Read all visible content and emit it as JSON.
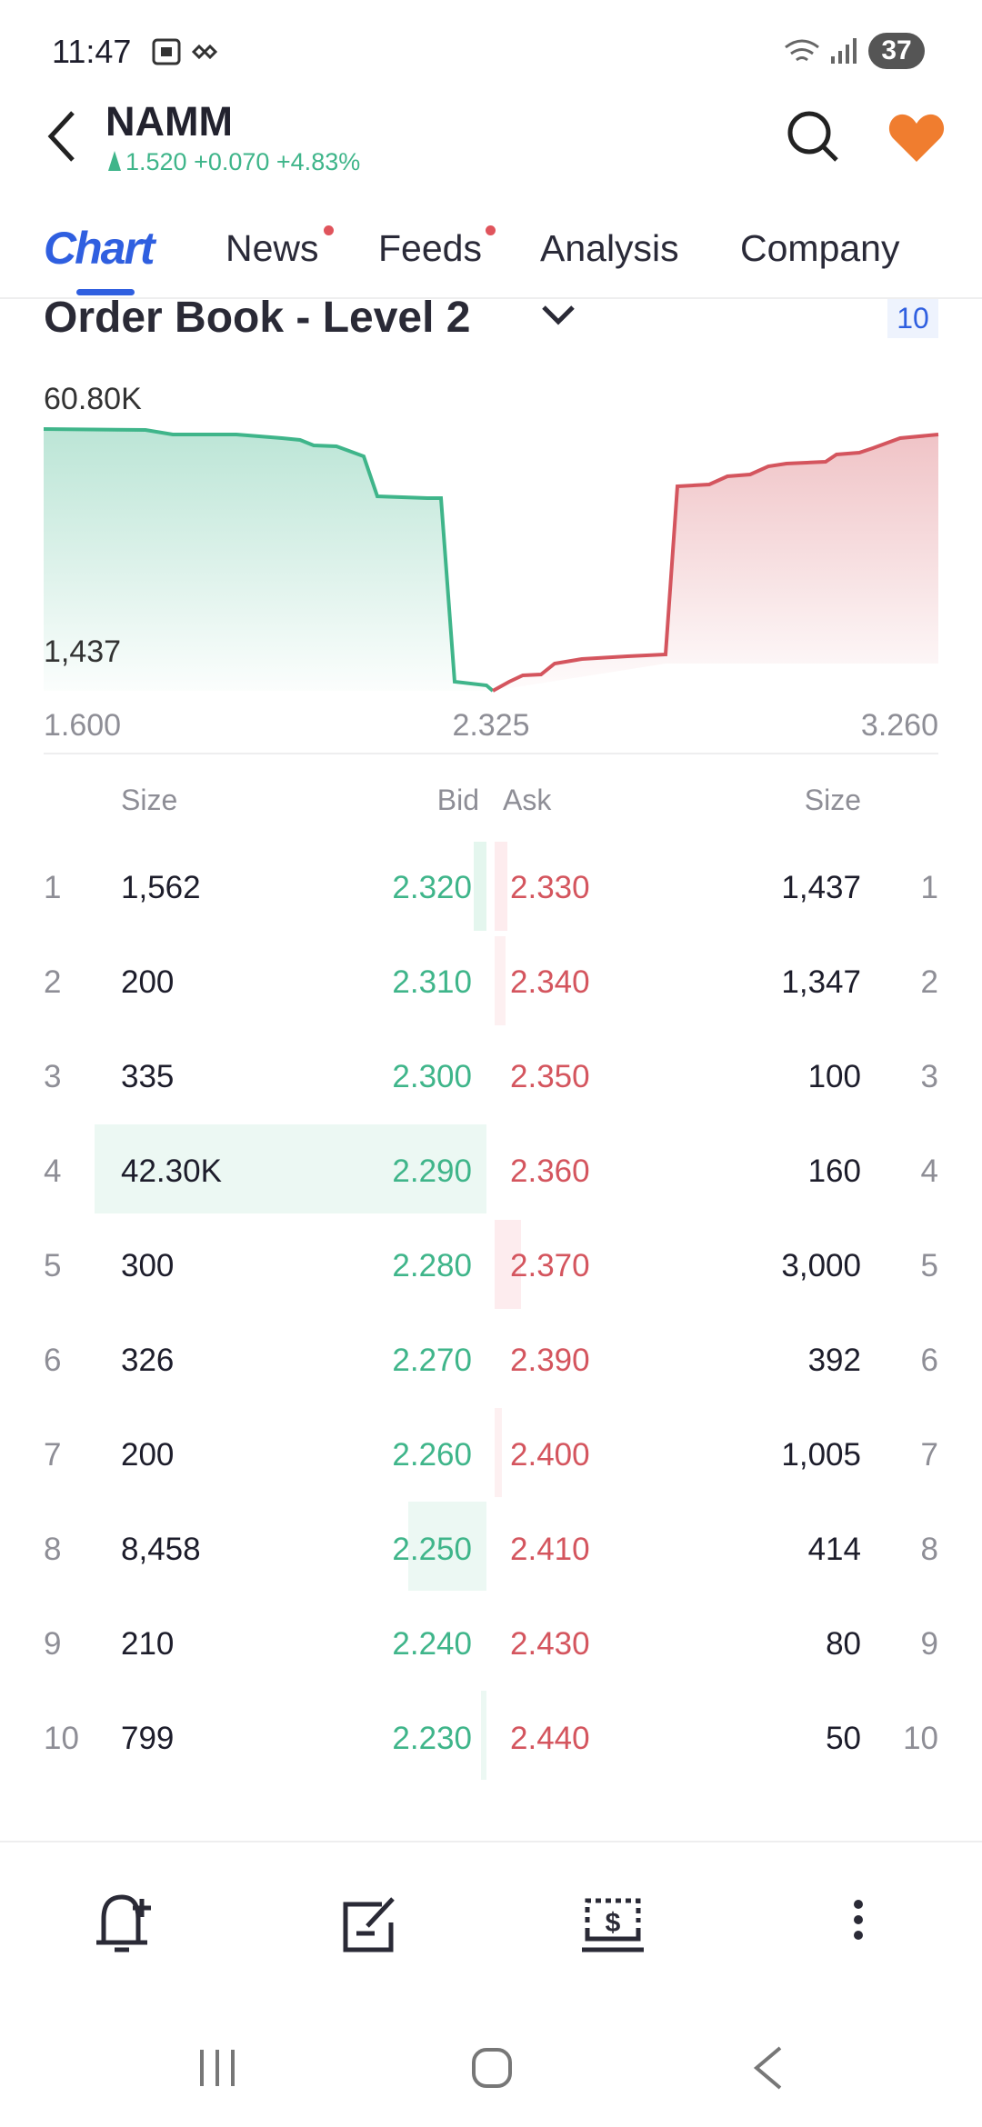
{
  "status_bar": {
    "time": "11:47",
    "battery": "37"
  },
  "header": {
    "symbol": "NAMM",
    "quote": "1.520 +0.070 +4.83%"
  },
  "tabs": [
    "Chart",
    "News",
    "Feeds",
    "Analysis",
    "Company"
  ],
  "section": {
    "title": "Order Book - Level 2",
    "depth": "10"
  },
  "depth_chart": {
    "y_top": "60.80K",
    "y_bottom": "1,437",
    "x_labels": [
      "1.600",
      "2.325",
      "3.260"
    ]
  },
  "table": {
    "headers": [
      "Size",
      "Bid",
      "Ask",
      "Size"
    ],
    "rows": [
      {
        "rank": "1",
        "bid_size": "1,562",
        "bid": "2.320",
        "ask": "2.330",
        "ask_size": "1,437"
      },
      {
        "rank": "2",
        "bid_size": "200",
        "bid": "2.310",
        "ask": "2.340",
        "ask_size": "1,347"
      },
      {
        "rank": "3",
        "bid_size": "335",
        "bid": "2.300",
        "ask": "2.350",
        "ask_size": "100"
      },
      {
        "rank": "4",
        "bid_size": "42.30K",
        "bid": "2.290",
        "ask": "2.360",
        "ask_size": "160"
      },
      {
        "rank": "5",
        "bid_size": "300",
        "bid": "2.280",
        "ask": "2.370",
        "ask_size": "3,000"
      },
      {
        "rank": "6",
        "bid_size": "326",
        "bid": "2.270",
        "ask": "2.390",
        "ask_size": "392"
      },
      {
        "rank": "7",
        "bid_size": "200",
        "bid": "2.260",
        "ask": "2.400",
        "ask_size": "1,005"
      },
      {
        "rank": "8",
        "bid_size": "8,458",
        "bid": "2.250",
        "ask": "2.410",
        "ask_size": "414"
      },
      {
        "rank": "9",
        "bid_size": "210",
        "bid": "2.240",
        "ask": "2.430",
        "ask_size": "80"
      },
      {
        "rank": "10",
        "bid_size": "799",
        "bid": "2.230",
        "ask": "2.440",
        "ask_size": "50"
      }
    ]
  }
}
